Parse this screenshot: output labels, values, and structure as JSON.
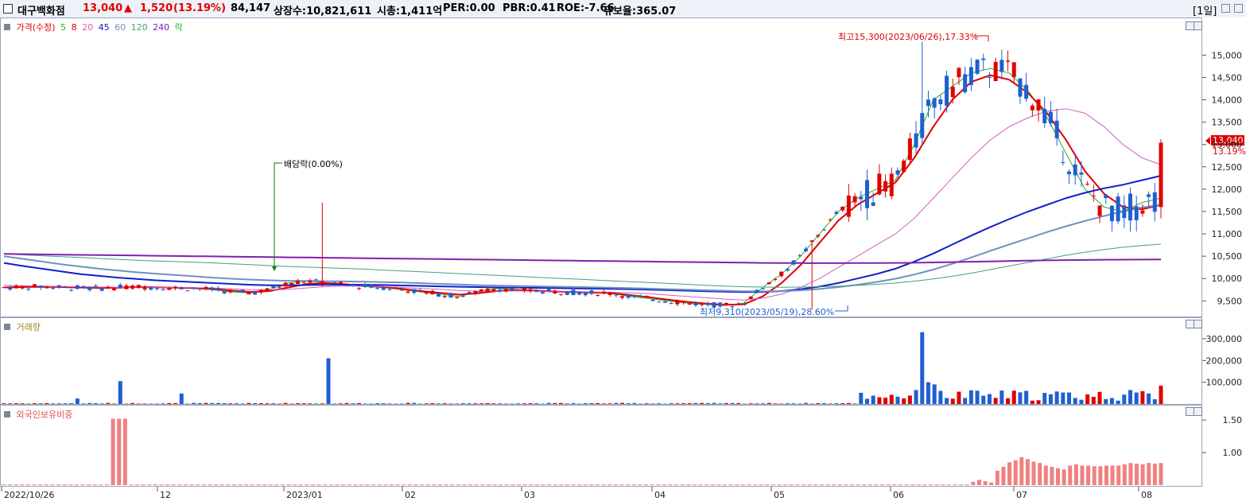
{
  "header": {
    "stock_name": "대구백화점",
    "price": "13,040",
    "change_arrow": "▲",
    "change": "1,520",
    "change_pct": "(13.19%)",
    "volume": "84,147",
    "listed_shares": "상장수:10,821,611",
    "market_cap": "시총:1,411억",
    "per": "PER:0.00",
    "pbr": "PBR:0.41",
    "roe": "ROE:-7.66",
    "float_ratio": "유보율:365.07",
    "period": "[1일]"
  },
  "price_panel": {
    "legend": {
      "price_label": "가격(수정)",
      "ma5": "5",
      "ma8": "8",
      "ma20": "20",
      "ma45": "45",
      "ma60": "60",
      "ma120": "120",
      "ma240": "240",
      "ex_label": "락"
    },
    "annotation_high": "최고15,300(2023/06/26),17.33%",
    "annotation_low": "최저9,310(2023/05/19),28.60%",
    "annotation_dividend": "배당락(0.00%)",
    "current_tag": "13,040",
    "current_pct": "13.19%"
  },
  "volume_panel": {
    "label": "거래량"
  },
  "foreign_panel": {
    "label": "외국인보유비중"
  },
  "colors": {
    "up": "#e00000",
    "down": "#1f5fd0",
    "ma5": "#22b022",
    "ma8": "#e00000",
    "ma20": "#d060c0",
    "ma45": "#1020c8",
    "ma60": "#7090c0",
    "ma120": "#40a080",
    "ma240": "#8020b0",
    "foreign": "#f08080"
  },
  "chart_data": [
    {
      "type": "candlestick",
      "title": "대구백화점 가격(수정)",
      "x_labels": [
        "2022/10/26",
        "12",
        "2023/01",
        "02",
        "03",
        "04",
        "05",
        "06",
        "07",
        "08"
      ],
      "y_ticks": [
        9500,
        10000,
        10500,
        11000,
        11500,
        12000,
        12500,
        13000,
        13500,
        14000,
        14500,
        15000
      ],
      "ylim": [
        9150,
        15700
      ],
      "key_values": {
        "high": 15300,
        "high_date": "2023/06/26",
        "low": 9310,
        "low_date": "2023/05/19",
        "last": 13040
      },
      "series": [
        {
          "name": "5",
          "values": [
            9800,
            9810,
            9820,
            9800,
            9790,
            9780,
            9800,
            9820,
            9800,
            9790,
            9780,
            9750,
            9700,
            9680,
            9750,
            9900,
            9950,
            9900,
            9850,
            9820,
            9800,
            9750,
            9700,
            9650,
            9600,
            9700,
            9780,
            9750,
            9720,
            9700,
            9690,
            9680,
            9670,
            9600,
            9550,
            9500,
            9450,
            9420,
            9400,
            9450,
            9800,
            10100,
            10500,
            11000,
            11500,
            11800,
            12000,
            12200,
            13000,
            14000,
            14300,
            14600,
            14700,
            14600,
            14200,
            13600,
            12800,
            12000,
            11600,
            11500,
            11700,
            11800
          ]
        },
        {
          "name": "8",
          "values": [
            9800,
            9810,
            9815,
            9810,
            9800,
            9790,
            9795,
            9810,
            9805,
            9795,
            9785,
            9765,
            9730,
            9700,
            9720,
            9800,
            9880,
            9900,
            9870,
            9840,
            9810,
            9770,
            9720,
            9680,
            9640,
            9670,
            9720,
            9740,
            9730,
            9710,
            9700,
            9690,
            9675,
            9630,
            9580,
            9530,
            9480,
            9440,
            9410,
            9420,
            9600,
            9900,
            10300,
            10800,
            11300,
            11650,
            11900,
            12150,
            12700,
            13400,
            14000,
            14400,
            14550,
            14450,
            14150,
            13700,
            13100,
            12400,
            11900,
            11600,
            11550,
            11650
          ]
        },
        {
          "name": "20",
          "values": [
            9850,
            9840,
            9830,
            9820,
            9815,
            9810,
            9805,
            9805,
            9805,
            9800,
            9795,
            9790,
            9770,
            9750,
            9745,
            9760,
            9790,
            9820,
            9830,
            9830,
            9820,
            9800,
            9780,
            9760,
            9730,
            9720,
            9720,
            9725,
            9720,
            9710,
            9705,
            9700,
            9695,
            9680,
            9660,
            9630,
            9600,
            9570,
            9540,
            9520,
            9560,
            9650,
            9800,
            10000,
            10250,
            10500,
            10750,
            11000,
            11350,
            11800,
            12250,
            12700,
            13100,
            13400,
            13600,
            13750,
            13800,
            13700,
            13400,
            13000,
            12700,
            12550
          ]
        },
        {
          "name": "45",
          "values": [
            10350,
            10280,
            10220,
            10160,
            10100,
            10060,
            10020,
            9990,
            9960,
            9940,
            9920,
            9900,
            9880,
            9860,
            9850,
            9850,
            9855,
            9860,
            9862,
            9860,
            9855,
            9845,
            9835,
            9825,
            9815,
            9808,
            9800,
            9795,
            9790,
            9785,
            9780,
            9775,
            9770,
            9762,
            9752,
            9740,
            9728,
            9716,
            9705,
            9698,
            9700,
            9720,
            9760,
            9820,
            9900,
            10000,
            10100,
            10220,
            10380,
            10560,
            10760,
            10960,
            11150,
            11330,
            11500,
            11650,
            11800,
            11920,
            12020,
            12100,
            12200,
            12300
          ]
        },
        {
          "name": "60",
          "values": [
            10500,
            10440,
            10380,
            10320,
            10270,
            10220,
            10180,
            10140,
            10110,
            10080,
            10050,
            10020,
            9995,
            9975,
            9960,
            9950,
            9945,
            9940,
            9935,
            9930,
            9920,
            9910,
            9895,
            9880,
            9865,
            9852,
            9842,
            9834,
            9826,
            9818,
            9810,
            9803,
            9796,
            9786,
            9775,
            9762,
            9750,
            9738,
            9726,
            9716,
            9712,
            9718,
            9736,
            9766,
            9808,
            9860,
            9922,
            9995,
            10090,
            10200,
            10330,
            10470,
            10620,
            10760,
            10900,
            11040,
            11170,
            11290,
            11400,
            11500,
            11590,
            11650
          ]
        },
        {
          "name": "120",
          "values": [
            10550,
            10530,
            10510,
            10490,
            10470,
            10450,
            10430,
            10410,
            10395,
            10380,
            10365,
            10350,
            10330,
            10310,
            10290,
            10270,
            10255,
            10240,
            10225,
            10210,
            10190,
            10170,
            10150,
            10130,
            10110,
            10090,
            10070,
            10050,
            10030,
            10010,
            9990,
            9970,
            9950,
            9930,
            9910,
            9890,
            9870,
            9850,
            9830,
            9815,
            9808,
            9805,
            9808,
            9815,
            9828,
            9846,
            9870,
            9900,
            9940,
            9990,
            10050,
            10120,
            10200,
            10280,
            10360,
            10440,
            10520,
            10590,
            10650,
            10700,
            10740,
            10770
          ]
        },
        {
          "name": "240",
          "values": [
            10550,
            10545,
            10540,
            10535,
            10530,
            10525,
            10520,
            10515,
            10510,
            10505,
            10500,
            10495,
            10490,
            10485,
            10480,
            10475,
            10470,
            10465,
            10460,
            10455,
            10450,
            10445,
            10440,
            10435,
            10430,
            10425,
            10420,
            10415,
            10410,
            10405,
            10400,
            10395,
            10390,
            10385,
            10380,
            10375,
            10370,
            10365,
            10360,
            10355,
            10350,
            10348,
            10346,
            10345,
            10345,
            10346,
            10348,
            10350,
            10354,
            10360,
            10368,
            10376,
            10384,
            10392,
            10400,
            10406,
            10412,
            10416,
            10420,
            10423,
            10425,
            10427
          ]
        }
      ]
    },
    {
      "type": "bar",
      "title": "거래량",
      "y_ticks": [
        100000,
        200000,
        300000
      ],
      "ylim": [
        0,
        340000
      ],
      "key_values": {
        "max_volume": 330000,
        "max_date": "2023/06/26"
      }
    },
    {
      "type": "bar",
      "title": "외국인보유비중",
      "y_ticks": [
        1.0,
        1.5
      ],
      "ylim": [
        0.5,
        1.6
      ],
      "series": [
        {
          "name": "외국인보유비중",
          "values": [
            0.51,
            0.51,
            0.51,
            0.51,
            0.51,
            0.51,
            0.51,
            0.51,
            0.51,
            0.51,
            0.51,
            0.51,
            0.51,
            0.51,
            0.51,
            0.51,
            0.51,
            0.51,
            1.52,
            1.52,
            1.52,
            0.51,
            0.51,
            0.51,
            0.51,
            0.51,
            0.51,
            0.51,
            0.51,
            0.51,
            0.51,
            0.51,
            0.51,
            0.51,
            0.51,
            0.51,
            0.51,
            0.51,
            0.51,
            0.51,
            0.51,
            0.51,
            0.51,
            0.51,
            0.51,
            0.51,
            0.51,
            0.51,
            0.51,
            0.51,
            0.51,
            0.51,
            0.51,
            0.51,
            0.51,
            0.51,
            0.51,
            0.51,
            0.51,
            0.51,
            0.51,
            0.51,
            0.51,
            0.51,
            0.51,
            0.51,
            0.51,
            0.51,
            0.51,
            0.51,
            0.51,
            0.51,
            0.51,
            0.51,
            0.51,
            0.51,
            0.51,
            0.51,
            0.51,
            0.51,
            0.51,
            0.51,
            0.51,
            0.51,
            0.51,
            0.51,
            0.51,
            0.51,
            0.51,
            0.51,
            0.51,
            0.51,
            0.51,
            0.51,
            0.51,
            0.51,
            0.51,
            0.51,
            0.51,
            0.51,
            0.51,
            0.51,
            0.51,
            0.51,
            0.51,
            0.51,
            0.51,
            0.51,
            0.51,
            0.51,
            0.51,
            0.51,
            0.51,
            0.51,
            0.51,
            0.51,
            0.51,
            0.51,
            0.51,
            0.51,
            0.51,
            0.51,
            0.51,
            0.51,
            0.51,
            0.51,
            0.51,
            0.51,
            0.51,
            0.51,
            0.51,
            0.51,
            0.51,
            0.51,
            0.51,
            0.51,
            0.51,
            0.51,
            0.51,
            0.51,
            0.51,
            0.51,
            0.51,
            0.51,
            0.51,
            0.51,
            0.51,
            0.51,
            0.51,
            0.51,
            0.51,
            0.51,
            0.51,
            0.51,
            0.51,
            0.51,
            0.51,
            0.51,
            0.51,
            0.51,
            0.55,
            0.58,
            0.56,
            0.54,
            0.72,
            0.78,
            0.85,
            0.88,
            0.93,
            0.9,
            0.86,
            0.84,
            0.8,
            0.78,
            0.76,
            0.74,
            0.8,
            0.82,
            0.8,
            0.8,
            0.79,
            0.79,
            0.8,
            0.8,
            0.8,
            0.82,
            0.84,
            0.83,
            0.82,
            0.84,
            0.83,
            0.84
          ]
        }
      ]
    }
  ]
}
